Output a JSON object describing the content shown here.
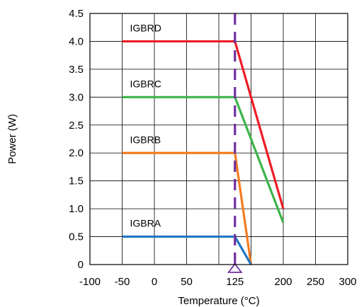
{
  "chart_data": {
    "type": "line",
    "title": "",
    "xlabel": "Temperature (°C)",
    "ylabel": "Power (W)",
    "xlim": [
      -100,
      300
    ],
    "ylim": [
      0,
      4.5
    ],
    "x_ticks": [
      -100,
      -50,
      0,
      50,
      125,
      200,
      250,
      300
    ],
    "x_tick_labels": [
      "-100",
      "-50",
      "0",
      "50",
      "125",
      "200",
      "250",
      "300"
    ],
    "x_gridlines": [
      -100,
      -50,
      0,
      50,
      100,
      150,
      200,
      250,
      300
    ],
    "y_ticks": [
      0,
      0.5,
      1.0,
      1.5,
      2.0,
      2.5,
      3.0,
      3.5,
      4.0,
      4.5
    ],
    "y_tick_labels": [
      "0",
      "0.5",
      "1.0",
      "1.5",
      "2.0",
      "2.5",
      "3.0",
      "3.5",
      "4.0",
      "4.5"
    ],
    "grid": true,
    "marker": {
      "x": 125,
      "style": "dashed",
      "color": "#7030a0",
      "label": ""
    },
    "series": [
      {
        "name": "IGBRD",
        "color": "#ee1c25",
        "label_at": [
          -50,
          4.24
        ],
        "points": [
          [
            -50,
            4.0
          ],
          [
            125,
            4.0
          ],
          [
            200,
            1.0
          ]
        ]
      },
      {
        "name": "IGBRC",
        "color": "#3cb44a",
        "label_at": [
          -50,
          3.24
        ],
        "points": [
          [
            -50,
            3.0
          ],
          [
            125,
            3.0
          ],
          [
            200,
            0.75
          ]
        ]
      },
      {
        "name": "IGBRB",
        "color": "#f47c20",
        "label_at": [
          -50,
          2.24
        ],
        "points": [
          [
            -50,
            2.0
          ],
          [
            125,
            2.0
          ],
          [
            150,
            0.0
          ]
        ]
      },
      {
        "name": "IGBRA",
        "color": "#1f77c4",
        "label_at": [
          -50,
          0.74
        ],
        "points": [
          [
            -50,
            0.5
          ],
          [
            125,
            0.5
          ],
          [
            150,
            0.0
          ]
        ]
      }
    ]
  }
}
